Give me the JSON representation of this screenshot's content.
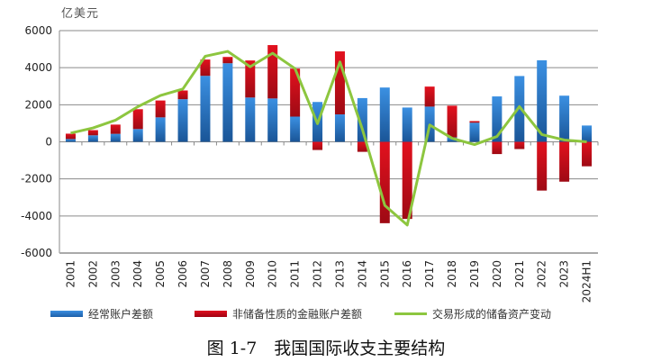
{
  "chart_data": {
    "type": "bar",
    "subtype": "stacked-bar-with-line",
    "title": "图 1-7　我国国际收支主要结构",
    "unit_label": "亿美元",
    "xlabel": "",
    "ylabel": "亿美元",
    "ylim": [
      -6000,
      6000
    ],
    "yticks": [
      6000,
      4000,
      2000,
      0,
      -2000,
      -4000,
      -6000
    ],
    "grid": true,
    "legend_position": "bottom",
    "categories": [
      "2001",
      "2002",
      "2003",
      "2004",
      "2005",
      "2006",
      "2007",
      "2008",
      "2009",
      "2010",
      "2011",
      "2012",
      "2013",
      "2014",
      "2015",
      "2016",
      "2017",
      "2018",
      "2019",
      "2020",
      "2021",
      "2022",
      "2023",
      "2024H1"
    ],
    "series": [
      {
        "name": "经常账户差额",
        "type": "bar",
        "color": "#2f7fd1",
        "values": [
          150,
          350,
          430,
          690,
          1320,
          2300,
          3560,
          4240,
          2390,
          2340,
          1360,
          2150,
          1480,
          2360,
          2930,
          1850,
          1900,
          240,
          1030,
          2450,
          3550,
          4400,
          2490,
          880
        ]
      },
      {
        "name": "非储备性质的金融账户差额",
        "type": "bar",
        "color": "#d0101d",
        "values": [
          290,
          280,
          500,
          1070,
          910,
          470,
          880,
          340,
          2000,
          2880,
          2590,
          -440,
          3400,
          -540,
          -4390,
          -4160,
          1080,
          1710,
          90,
          -660,
          -390,
          -2630,
          -2150,
          -1320
        ]
      },
      {
        "name": "交易形成的储备资产变动",
        "type": "line",
        "color": "#8dc63f",
        "values": [
          470,
          750,
          1170,
          1900,
          2500,
          2850,
          4620,
          4880,
          4050,
          4780,
          3950,
          980,
          4310,
          680,
          -3430,
          -4490,
          910,
          190,
          -150,
          290,
          1900,
          390,
          100,
          0
        ]
      }
    ]
  },
  "legend": {
    "items": [
      {
        "label": "经常账户差额",
        "color": "#2f7fd1"
      },
      {
        "label": "非储备性质的金融账户差额",
        "color": "#d0101d"
      },
      {
        "label": "交易形成的储备资产变动",
        "color": "#8dc63f"
      }
    ]
  },
  "caption": "图 1-7　我国国际收支主要结构"
}
